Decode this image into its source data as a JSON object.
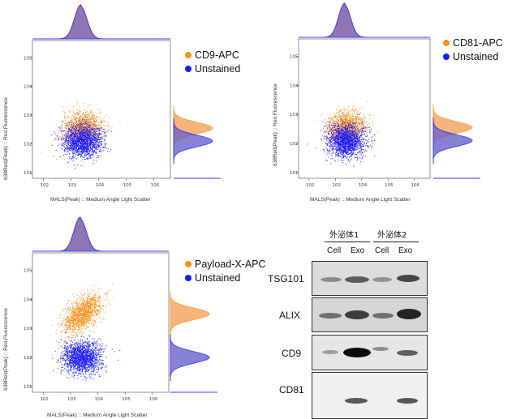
{
  "panels": [
    {
      "legend": [
        "CD9-APC",
        "Unstained"
      ],
      "ylabel": "638Red(Peak) :: Red Fluorescence",
      "xlabel": "MALS(Peak) :: Medium Angle Light Scatter",
      "positive_mean_y": 2.55,
      "negative_mean_y": 2.1
    },
    {
      "legend": [
        "CD81-APC",
        "Unstained"
      ],
      "ylabel": "638Red(Peak) :: Red Fluorescence",
      "xlabel": "MALS(Peak) :: Medium Angle Light Scatter",
      "positive_mean_y": 2.55,
      "negative_mean_y": 2.1
    },
    {
      "legend": [
        "Payload-X-APC",
        "Unstained"
      ],
      "ylabel": "638Red(Peak) :: Red Fluorescence",
      "xlabel": "MALS(Peak) :: Medium Angle Light Scatter",
      "positive_mean_y": 3.5,
      "negative_mean_y": 2.0
    }
  ],
  "colors": {
    "positive": "#f7931e",
    "negative": "#1a1aff",
    "hist_fill_pos": "#f5a25a",
    "hist_fill_neg": "#6b63c9"
  },
  "y_ticks": [
    "1",
    "2",
    "3",
    "4",
    "5"
  ],
  "x_ticks": [
    "2",
    "3",
    "4",
    "5",
    "6"
  ],
  "western_blot": {
    "groups": [
      "外泌体1",
      "外泌体2"
    ],
    "lanes": [
      "Cell",
      "Exo",
      "Cell",
      "Exo"
    ],
    "proteins": [
      "TSG101",
      "ALIX",
      "CD9",
      "CD81"
    ]
  }
}
